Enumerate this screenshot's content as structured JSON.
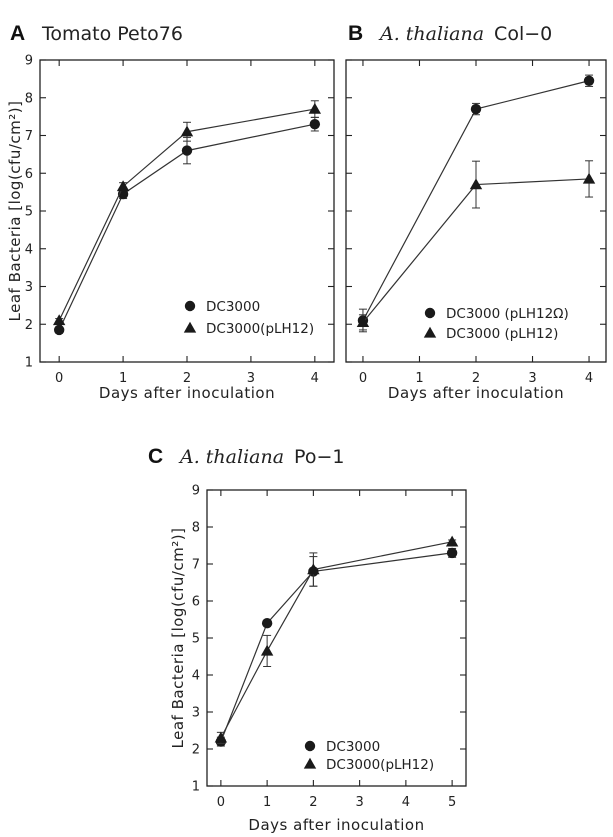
{
  "chart_data": [
    {
      "type": "line",
      "panel": "A",
      "title": "Tomato Peto76",
      "title_italic": false,
      "xlabel": "Days after inoculation",
      "ylabel": "Leaf Bacteria [log(cfu/cm²)]",
      "xlim": [
        -0.3,
        4.3
      ],
      "ylim": [
        1,
        9
      ],
      "xticks": [
        0,
        1,
        2,
        3,
        4
      ],
      "yticks": [
        1,
        2,
        3,
        4,
        5,
        6,
        7,
        8,
        9
      ],
      "grid": false,
      "legend_position": "bottom-right",
      "series": [
        {
          "name": "DC3000",
          "marker": "circle",
          "x": [
            0,
            1,
            2,
            4
          ],
          "y": [
            1.85,
            5.45,
            6.6,
            7.3
          ],
          "err": [
            0.05,
            0.12,
            0.35,
            0.18
          ]
        },
        {
          "name": "DC3000(pLH12)",
          "marker": "triangle",
          "x": [
            0,
            1,
            2,
            4
          ],
          "y": [
            2.1,
            5.65,
            7.1,
            7.7
          ],
          "err": [
            0.05,
            0.1,
            0.25,
            0.22
          ]
        }
      ]
    },
    {
      "type": "line",
      "panel": "B",
      "title_italic_part": "A. thaliana",
      "title_plain_part": "Col−0",
      "xlabel": "Days after inoculation",
      "ylabel": "",
      "xlim": [
        -0.3,
        4.3
      ],
      "ylim": [
        1,
        9
      ],
      "xticks": [
        0,
        1,
        2,
        3,
        4
      ],
      "yticks": [
        1,
        2,
        3,
        4,
        5,
        6,
        7,
        8,
        9
      ],
      "grid": false,
      "legend_position": "bottom-right",
      "series": [
        {
          "name": "DC3000 (pLH12Ω)",
          "marker": "circle",
          "x": [
            0,
            2,
            4
          ],
          "y": [
            2.1,
            7.7,
            8.45
          ],
          "err": [
            0.3,
            0.15,
            0.15
          ]
        },
        {
          "name": "DC3000 (pLH12)",
          "marker": "triangle",
          "x": [
            0,
            2,
            4
          ],
          "y": [
            2.05,
            5.7,
            5.85
          ],
          "err": [
            0.2,
            0.62,
            0.48
          ]
        }
      ]
    },
    {
      "type": "line",
      "panel": "C",
      "title_italic_part": "A. thaliana",
      "title_plain_part": "Po−1",
      "xlabel": "Days after inoculation",
      "ylabel": "Leaf Bacteria [log(cfu/cm²)]",
      "xlim": [
        -0.3,
        5.3
      ],
      "ylim": [
        1,
        9
      ],
      "xticks": [
        0,
        1,
        2,
        3,
        4,
        5
      ],
      "yticks": [
        1,
        2,
        3,
        4,
        5,
        6,
        7,
        8,
        9
      ],
      "grid": false,
      "legend_position": "bottom-right",
      "series": [
        {
          "name": "DC3000",
          "marker": "circle",
          "x": [
            0,
            1,
            2,
            5
          ],
          "y": [
            2.2,
            5.4,
            6.8,
            7.3
          ],
          "err": [
            0.12,
            0.05,
            0.4,
            0.12
          ]
        },
        {
          "name": "DC3000(pLH12)",
          "marker": "triangle",
          "x": [
            0,
            1,
            2,
            5
          ],
          "y": [
            2.3,
            4.65,
            6.85,
            7.6
          ],
          "err": [
            0.15,
            0.42,
            0.45,
            0.05
          ]
        }
      ]
    }
  ]
}
